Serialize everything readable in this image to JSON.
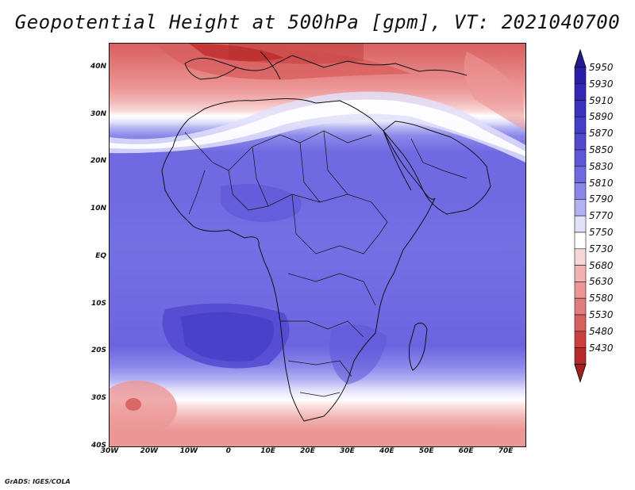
{
  "title": "Geopotential Height at 500hPa [gpm], VT: 2021040700",
  "credit": "GrADS: IGES/COLA",
  "map": {
    "region": "Africa",
    "lon_range": [
      -30,
      75
    ],
    "lat_range": [
      -40,
      45
    ],
    "lat_ticks": [
      {
        "value": 40,
        "label": "40N"
      },
      {
        "value": 30,
        "label": "30N"
      },
      {
        "value": 20,
        "label": "20N"
      },
      {
        "value": 10,
        "label": "10N"
      },
      {
        "value": 0,
        "label": "EQ"
      },
      {
        "value": -10,
        "label": "10S"
      },
      {
        "value": -20,
        "label": "20S"
      },
      {
        "value": -30,
        "label": "30S"
      },
      {
        "value": -40,
        "label": "40S"
      }
    ],
    "lon_ticks": [
      {
        "value": -30,
        "label": "30W"
      },
      {
        "value": -20,
        "label": "20W"
      },
      {
        "value": -10,
        "label": "10W"
      },
      {
        "value": 0,
        "label": "0"
      },
      {
        "value": 10,
        "label": "10E"
      },
      {
        "value": 20,
        "label": "20E"
      },
      {
        "value": 30,
        "label": "30E"
      },
      {
        "value": 40,
        "label": "40E"
      },
      {
        "value": 50,
        "label": "50E"
      },
      {
        "value": 60,
        "label": "60E"
      },
      {
        "value": 70,
        "label": "70E"
      }
    ]
  },
  "colorbar": {
    "levels": [
      {
        "label": "5950",
        "color": "#2a1fa8"
      },
      {
        "label": "5930",
        "color": "#3228b4"
      },
      {
        "label": "5910",
        "color": "#3b33bf"
      },
      {
        "label": "5890",
        "color": "#453ec8"
      },
      {
        "label": "5870",
        "color": "#5249d0"
      },
      {
        "label": "5850",
        "color": "#5f57d9"
      },
      {
        "label": "5830",
        "color": "#6f69e2"
      },
      {
        "label": "5810",
        "color": "#8a87ea"
      },
      {
        "label": "5790",
        "color": "#b3b1f2"
      },
      {
        "label": "5770",
        "color": "#e2e1fa"
      },
      {
        "label": "5750",
        "color": "#ffffff"
      },
      {
        "label": "5730",
        "color": "#f9d6d6"
      },
      {
        "label": "5680",
        "color": "#f2b2b2"
      },
      {
        "label": "5630",
        "color": "#ec9696"
      },
      {
        "label": "5580",
        "color": "#e37d7d"
      },
      {
        "label": "5530",
        "color": "#d95f5f"
      },
      {
        "label": "5480",
        "color": "#cc4040"
      },
      {
        "label": "5430",
        "color": "#b82a2a"
      }
    ],
    "top_arrow_color": "#231896",
    "bottom_arrow_color": "#a81e1e"
  }
}
